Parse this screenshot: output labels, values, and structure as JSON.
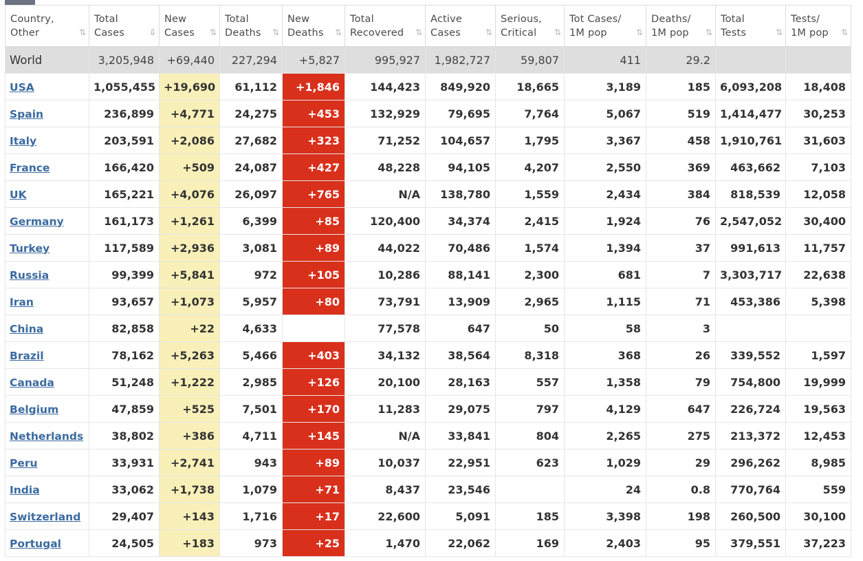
{
  "columns": [
    {
      "label": "Country,\nOther",
      "sort": "⇅"
    },
    {
      "label": "Total\nCases",
      "sort": "⇩",
      "active": true
    },
    {
      "label": "New\nCases",
      "sort": "⇅"
    },
    {
      "label": "Total\nDeaths",
      "sort": "⇅"
    },
    {
      "label": "New\nDeaths",
      "sort": "⇅"
    },
    {
      "label": "Total\nRecovered",
      "sort": "⇅"
    },
    {
      "label": "Active\nCases",
      "sort": "⇅"
    },
    {
      "label": "Serious,\nCritical",
      "sort": "⇅"
    },
    {
      "label": "Tot Cases/\n1M pop",
      "sort": "⇅"
    },
    {
      "label": "Deaths/\n1M pop",
      "sort": "⇅"
    },
    {
      "label": "Total\nTests",
      "sort": "⇅"
    },
    {
      "label": "Tests/\n1M pop",
      "sort": "⇅"
    }
  ],
  "world": [
    "World",
    "3,205,948",
    "+69,440",
    "227,294",
    "+5,827",
    "995,927",
    "1,982,727",
    "59,807",
    "411",
    "29.2",
    "",
    ""
  ],
  "rows": [
    [
      "USA",
      "1,055,455",
      "+19,690",
      "61,112",
      "+1,846",
      "144,423",
      "849,920",
      "18,665",
      "3,189",
      "185",
      "6,093,208",
      "18,408"
    ],
    [
      "Spain",
      "236,899",
      "+4,771",
      "24,275",
      "+453",
      "132,929",
      "79,695",
      "7,764",
      "5,067",
      "519",
      "1,414,477",
      "30,253"
    ],
    [
      "Italy",
      "203,591",
      "+2,086",
      "27,682",
      "+323",
      "71,252",
      "104,657",
      "1,795",
      "3,367",
      "458",
      "1,910,761",
      "31,603"
    ],
    [
      "France",
      "166,420",
      "+509",
      "24,087",
      "+427",
      "48,228",
      "94,105",
      "4,207",
      "2,550",
      "369",
      "463,662",
      "7,103"
    ],
    [
      "UK",
      "165,221",
      "+4,076",
      "26,097",
      "+765",
      "N/A",
      "138,780",
      "1,559",
      "2,434",
      "384",
      "818,539",
      "12,058"
    ],
    [
      "Germany",
      "161,173",
      "+1,261",
      "6,399",
      "+85",
      "120,400",
      "34,374",
      "2,415",
      "1,924",
      "76",
      "2,547,052",
      "30,400"
    ],
    [
      "Turkey",
      "117,589",
      "+2,936",
      "3,081",
      "+89",
      "44,022",
      "70,486",
      "1,574",
      "1,394",
      "37",
      "991,613",
      "11,757"
    ],
    [
      "Russia",
      "99,399",
      "+5,841",
      "972",
      "+105",
      "10,286",
      "88,141",
      "2,300",
      "681",
      "7",
      "3,303,717",
      "22,638"
    ],
    [
      "Iran",
      "93,657",
      "+1,073",
      "5,957",
      "+80",
      "73,791",
      "13,909",
      "2,965",
      "1,115",
      "71",
      "453,386",
      "5,398"
    ],
    [
      "China",
      "82,858",
      "+22",
      "4,633",
      "",
      "77,578",
      "647",
      "50",
      "58",
      "3",
      "",
      ""
    ],
    [
      "Brazil",
      "78,162",
      "+5,263",
      "5,466",
      "+403",
      "34,132",
      "38,564",
      "8,318",
      "368",
      "26",
      "339,552",
      "1,597"
    ],
    [
      "Canada",
      "51,248",
      "+1,222",
      "2,985",
      "+126",
      "20,100",
      "28,163",
      "557",
      "1,358",
      "79",
      "754,800",
      "19,999"
    ],
    [
      "Belgium",
      "47,859",
      "+525",
      "7,501",
      "+170",
      "11,283",
      "29,075",
      "797",
      "4,129",
      "647",
      "226,724",
      "19,563"
    ],
    [
      "Netherlands",
      "38,802",
      "+386",
      "4,711",
      "+145",
      "N/A",
      "33,841",
      "804",
      "2,265",
      "275",
      "213,372",
      "12,453"
    ],
    [
      "Peru",
      "33,931",
      "+2,741",
      "943",
      "+89",
      "10,037",
      "22,951",
      "623",
      "1,029",
      "29",
      "296,262",
      "8,985"
    ],
    [
      "India",
      "33,062",
      "+1,738",
      "1,079",
      "+71",
      "8,437",
      "23,546",
      "",
      "24",
      "0.8",
      "770,764",
      "559"
    ],
    [
      "Switzerland",
      "29,407",
      "+143",
      "1,716",
      "+17",
      "22,600",
      "5,091",
      "185",
      "3,398",
      "198",
      "260,500",
      "30,100"
    ],
    [
      "Portugal",
      "24,505",
      "+183",
      "973",
      "+25",
      "1,470",
      "22,062",
      "169",
      "2,403",
      "95",
      "379,551",
      "37,223"
    ]
  ]
}
